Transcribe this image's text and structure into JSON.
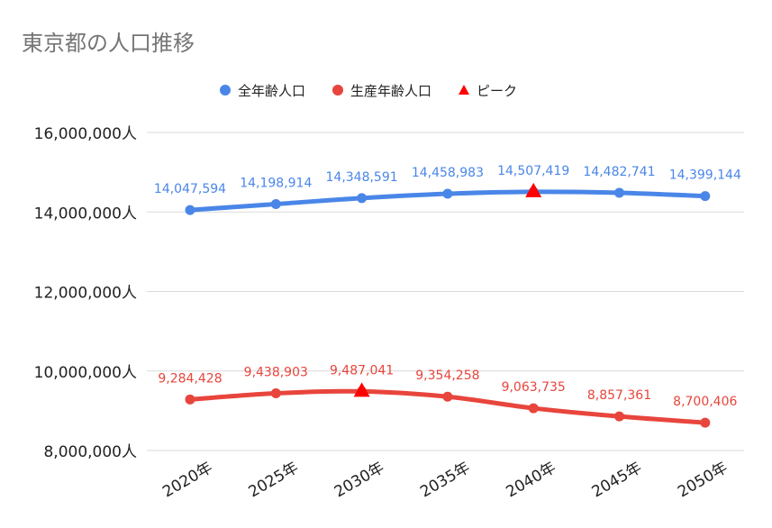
{
  "chart_data": {
    "type": "line",
    "title": "東京都の人口推移",
    "categories": [
      "2020年",
      "2025年",
      "2030年",
      "2035年",
      "2040年",
      "2045年",
      "2050年"
    ],
    "series": [
      {
        "name": "全年齢人口",
        "color": "#4a86e8",
        "values": [
          14047594,
          14198914,
          14348591,
          14458983,
          14507419,
          14482741,
          14399144
        ],
        "labels": [
          "14,047,594",
          "14,198,914",
          "14,348,591",
          "14,458,983",
          "14,507,419",
          "14,482,741",
          "14,399,144"
        ]
      },
      {
        "name": "生産年齢人口",
        "color": "#e8453c",
        "values": [
          9284428,
          9438903,
          9487041,
          9354258,
          9063735,
          8857361,
          8700406
        ],
        "labels": [
          "9,284,428",
          "9,438,903",
          "9,487,041",
          "9,354,258",
          "9,063,735",
          "8,857,361",
          "8,700,406"
        ]
      }
    ],
    "peak": {
      "name": "ピーク",
      "color": "#ff0000",
      "points": [
        {
          "series": 0,
          "category": "2040年"
        },
        {
          "series": 1,
          "category": "2030年"
        }
      ]
    },
    "y_ticks": [
      {
        "value": 8000000,
        "label": "8,000,000人"
      },
      {
        "value": 10000000,
        "label": "10,000,000人"
      },
      {
        "value": 12000000,
        "label": "12,000,000人"
      },
      {
        "value": 14000000,
        "label": "14,000,000人"
      },
      {
        "value": 16000000,
        "label": "16,000,000人"
      }
    ],
    "ylim": [
      8000000,
      16000000
    ],
    "grid": true,
    "legend_position": "top-center"
  }
}
